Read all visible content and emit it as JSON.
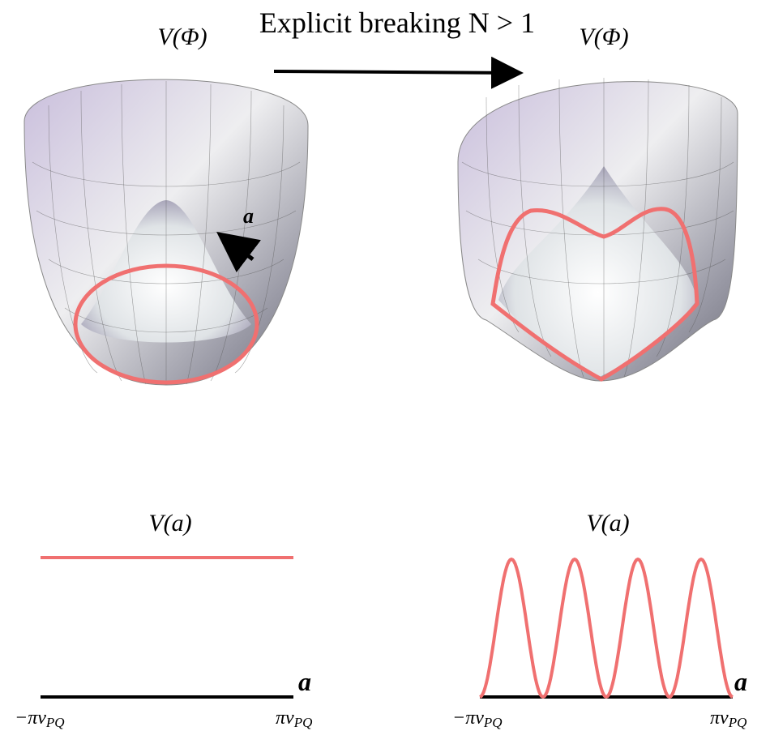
{
  "title": "Explicit breaking N > 1",
  "top_panels": [
    {
      "label": "V(Φ)",
      "field_label": "a"
    },
    {
      "label": "V(Φ)"
    }
  ],
  "bottom_panels": [
    {
      "label": "V(a)",
      "axis_label": "a",
      "left_tick": {
        "main": "−πv",
        "sub": "PQ"
      },
      "right_tick": {
        "main": "πv",
        "sub": "PQ"
      }
    },
    {
      "label": "V(a)",
      "axis_label": "a",
      "left_tick": {
        "main": "−πv",
        "sub": "PQ"
      },
      "right_tick": {
        "main": "πv",
        "sub": "PQ"
      }
    }
  ]
}
